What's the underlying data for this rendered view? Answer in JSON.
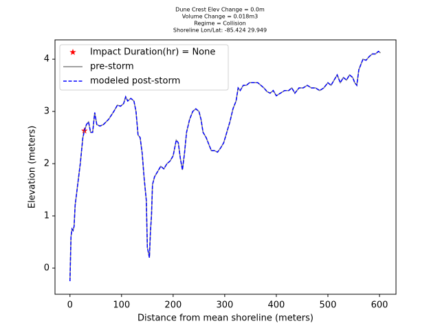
{
  "chart_data": {
    "type": "line",
    "title": [
      "Dune Crest Elev Change = 0.0m",
      "Volume Change = 0.018m3",
      "Regime = Collision",
      "Shoreline Lon/Lat: -85.424 29.949"
    ],
    "xlabel": "Distance from mean shoreline (meters)",
    "ylabel": "Elevation (meters)",
    "xlim": [
      -29,
      632
    ],
    "ylim": [
      -0.5,
      4.37
    ],
    "xticks": [
      0,
      100,
      200,
      300,
      400,
      500,
      600
    ],
    "yticks": [
      0,
      1,
      2,
      3,
      4
    ],
    "grid": false,
    "legend": "upper left",
    "x": [
      0,
      2,
      4,
      6,
      8,
      10,
      15,
      20,
      25,
      28,
      32,
      36,
      40,
      44,
      48,
      52,
      58,
      65,
      75,
      85,
      92,
      98,
      104,
      108,
      112,
      118,
      124,
      128,
      132,
      136,
      140,
      144,
      146,
      148,
      150,
      152,
      154,
      156,
      158,
      160,
      164,
      170,
      176,
      182,
      188,
      194,
      200,
      206,
      210,
      214,
      218,
      222,
      226,
      232,
      238,
      244,
      250,
      254,
      258,
      264,
      270,
      274,
      280,
      286,
      292,
      298,
      304,
      310,
      316,
      322,
      326,
      330,
      336,
      342,
      348,
      356,
      364,
      370,
      376,
      382,
      388,
      394,
      400,
      408,
      416,
      424,
      430,
      436,
      444,
      452,
      460,
      468,
      476,
      484,
      492,
      500,
      506,
      512,
      518,
      524,
      530,
      536,
      542,
      548,
      552,
      556,
      560,
      564,
      568,
      574,
      580,
      586,
      592,
      598,
      602
    ],
    "series": [
      {
        "name": "Impact Duration(hr) = None",
        "color": "#ff0000",
        "marker": "star",
        "x": [
          28
        ],
        "values": [
          2.63
        ]
      },
      {
        "name": "pre-storm",
        "color": "#808080",
        "dash": false,
        "values": [
          -0.25,
          0.6,
          0.75,
          0.72,
          0.8,
          1.2,
          1.6,
          2.0,
          2.5,
          2.63,
          2.75,
          2.8,
          2.6,
          2.6,
          2.98,
          2.75,
          2.72,
          2.75,
          2.85,
          3.0,
          3.12,
          3.1,
          3.15,
          3.28,
          3.2,
          3.25,
          3.2,
          3.0,
          2.55,
          2.5,
          2.2,
          1.7,
          1.5,
          1.3,
          0.4,
          0.3,
          0.2,
          0.7,
          1.0,
          1.6,
          1.75,
          1.85,
          1.95,
          1.9,
          2.0,
          2.05,
          2.15,
          2.45,
          2.4,
          2.1,
          1.88,
          2.2,
          2.6,
          2.85,
          3.0,
          3.05,
          3.0,
          2.85,
          2.6,
          2.5,
          2.35,
          2.25,
          2.25,
          2.22,
          2.3,
          2.4,
          2.6,
          2.8,
          3.05,
          3.2,
          3.45,
          3.4,
          3.5,
          3.5,
          3.55,
          3.55,
          3.55,
          3.5,
          3.45,
          3.38,
          3.35,
          3.4,
          3.3,
          3.35,
          3.4,
          3.4,
          3.45,
          3.35,
          3.45,
          3.45,
          3.5,
          3.45,
          3.45,
          3.4,
          3.45,
          3.55,
          3.5,
          3.6,
          3.7,
          3.55,
          3.65,
          3.6,
          3.7,
          3.65,
          3.55,
          3.5,
          3.8,
          3.9,
          4.0,
          3.98,
          4.05,
          4.1,
          4.1,
          4.15,
          4.12
        ]
      },
      {
        "name": "modeled post-storm",
        "color": "#0000ff",
        "dash": true,
        "values": [
          -0.25,
          0.6,
          0.75,
          0.72,
          0.8,
          1.2,
          1.6,
          2.0,
          2.5,
          2.63,
          2.75,
          2.8,
          2.6,
          2.6,
          2.98,
          2.75,
          2.72,
          2.75,
          2.85,
          3.0,
          3.12,
          3.1,
          3.15,
          3.28,
          3.2,
          3.25,
          3.2,
          3.0,
          2.55,
          2.5,
          2.2,
          1.7,
          1.5,
          1.3,
          0.4,
          0.3,
          0.2,
          0.7,
          1.0,
          1.6,
          1.75,
          1.85,
          1.95,
          1.9,
          2.0,
          2.05,
          2.15,
          2.45,
          2.4,
          2.1,
          1.88,
          2.2,
          2.6,
          2.85,
          3.0,
          3.05,
          3.0,
          2.85,
          2.6,
          2.5,
          2.35,
          2.25,
          2.25,
          2.22,
          2.3,
          2.4,
          2.6,
          2.8,
          3.05,
          3.2,
          3.45,
          3.4,
          3.5,
          3.5,
          3.55,
          3.55,
          3.55,
          3.5,
          3.45,
          3.38,
          3.35,
          3.4,
          3.3,
          3.35,
          3.4,
          3.4,
          3.45,
          3.35,
          3.45,
          3.45,
          3.5,
          3.45,
          3.45,
          3.4,
          3.45,
          3.55,
          3.5,
          3.6,
          3.7,
          3.55,
          3.65,
          3.6,
          3.7,
          3.65,
          3.55,
          3.5,
          3.8,
          3.9,
          4.0,
          3.98,
          4.05,
          4.1,
          4.1,
          4.15,
          4.12
        ]
      }
    ]
  }
}
